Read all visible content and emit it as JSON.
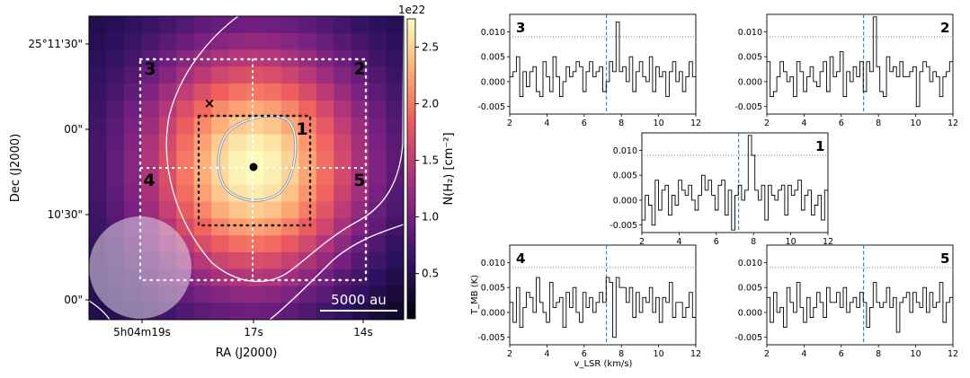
{
  "map": {
    "xlabel": "RA (J2000)",
    "ylabel": "Dec (J2000)",
    "x_ticks": [
      "5h04m19s",
      "17s",
      "14s"
    ],
    "y_ticks": [
      "25°11'30\"",
      "00\"",
      "10'30\"",
      "00\""
    ],
    "colorbar_label": "N(H₂) [cm⁻²]",
    "colorbar_offset": "1e22",
    "colorbar_ticks": [
      "0.5",
      "1.0",
      "1.5",
      "2.0",
      "2.5"
    ],
    "colorbar_range": [
      0.1,
      2.75
    ],
    "colormap": [
      "#000004",
      "#2c115f",
      "#721f81",
      "#b73779",
      "#f1605d",
      "#feb078",
      "#fcfdbf"
    ],
    "scalebar_label": "5000 au",
    "region_labels": [
      "1",
      "2",
      "3",
      "4",
      "5"
    ]
  },
  "chart_data": {
    "type": "line",
    "xlabel": "v_LSR (km/s)",
    "ylabel": "T_MB (K)",
    "xlim": [
      2,
      12
    ],
    "ylim": [
      -0.0065,
      0.0135
    ],
    "x_ticks": [
      "2",
      "4",
      "6",
      "8",
      "10",
      "12"
    ],
    "y_ticks": [
      "-0.005",
      "0.000",
      "0.005",
      "0.010"
    ],
    "threshold_k": 0.009,
    "line_velocity": 7.2,
    "panels": [
      {
        "label": "1",
        "values": [
          -0.004,
          0.001,
          -0.001,
          -0.005,
          0.004,
          -0.002,
          0.002,
          0.003,
          -0.003,
          0.001,
          -0.001,
          0.004,
          0.002,
          0.001,
          0.003,
          0.0,
          -0.002,
          0.001,
          0.005,
          0.002,
          0.004,
          0.001,
          -0.002,
          0.003,
          0.004,
          -0.003,
          0.002,
          -0.006,
          0.001,
          0.003,
          0.0,
          0.002,
          0.013,
          0.009,
          0.002,
          0.0,
          0.003,
          -0.004,
          0.003,
          0.001,
          0.0,
          0.002,
          0.003,
          -0.003,
          0.003,
          0.001,
          0.002,
          0.004,
          -0.002,
          0.001,
          0.002,
          -0.003,
          -0.001,
          0.001,
          -0.004,
          0.002
        ]
      },
      {
        "label": "2",
        "values": [
          0.004,
          -0.003,
          -0.002,
          0.001,
          0.004,
          0.002,
          0.0,
          0.001,
          -0.003,
          0.004,
          0.002,
          -0.002,
          0.001,
          0.003,
          0.0,
          -0.001,
          0.002,
          0.004,
          -0.002,
          0.005,
          0.001,
          0.002,
          0.006,
          -0.003,
          0.002,
          0.0,
          0.003,
          0.001,
          0.004,
          -0.002,
          0.004,
          0.002,
          0.013,
          0.003,
          -0.002,
          -0.003,
          0.005,
          0.002,
          0.003,
          0.001,
          0.004,
          0.001,
          0.001,
          0.002,
          0.003,
          -0.005,
          0.002,
          0.004,
          0.003,
          0.0,
          0.002,
          0.001,
          -0.003,
          0.001,
          0.002,
          0.004
        ]
      },
      {
        "label": "3",
        "values": [
          0.001,
          0.002,
          0.005,
          -0.003,
          0.002,
          -0.001,
          0.002,
          0.003,
          -0.002,
          -0.003,
          0.004,
          0.001,
          -0.002,
          0.005,
          0.001,
          -0.003,
          0.0,
          0.003,
          0.001,
          0.002,
          0.004,
          0.003,
          -0.002,
          0.002,
          0.004,
          0.001,
          0.002,
          0.003,
          -0.002,
          0.0,
          0.004,
          0.002,
          0.012,
          0.002,
          0.003,
          0.0,
          0.005,
          -0.002,
          0.002,
          0.004,
          0.001,
          0.0,
          0.005,
          -0.002,
          0.003,
          0.001,
          0.002,
          -0.003,
          0.002,
          0.004,
          0.0,
          0.002,
          -0.002,
          0.001,
          0.004,
          0.001
        ]
      },
      {
        "label": "4",
        "values": [
          0.002,
          -0.002,
          0.005,
          -0.003,
          0.001,
          0.004,
          0.003,
          0.0,
          0.007,
          0.002,
          0.0,
          -0.002,
          0.006,
          0.001,
          0.002,
          0.003,
          -0.003,
          0.004,
          0.001,
          0.005,
          0.0,
          -0.002,
          0.004,
          0.001,
          0.003,
          0.0,
          0.002,
          0.004,
          0.002,
          0.007,
          0.006,
          -0.005,
          0.007,
          0.005,
          0.005,
          0.002,
          0.005,
          -0.001,
          0.004,
          0.0,
          0.003,
          0.002,
          0.005,
          0.0,
          0.003,
          -0.002,
          0.003,
          0.002,
          0.006,
          -0.001,
          0.002,
          0.002,
          -0.001,
          0.001,
          0.004,
          -0.001
        ]
      },
      {
        "label": "5",
        "values": [
          0.003,
          -0.002,
          0.004,
          0.0,
          0.001,
          -0.003,
          0.005,
          0.002,
          0.0,
          0.006,
          0.001,
          -0.002,
          0.003,
          -0.001,
          0.001,
          0.004,
          0.002,
          -0.001,
          0.005,
          0.002,
          0.002,
          0.004,
          0.001,
          0.005,
          0.0,
          0.002,
          0.003,
          0.001,
          0.004,
          0.002,
          -0.003,
          0.001,
          0.006,
          0.002,
          0.001,
          0.002,
          0.005,
          0.001,
          0.003,
          -0.004,
          0.002,
          0.003,
          0.004,
          0.0,
          0.004,
          0.002,
          0.001,
          0.005,
          0.0,
          0.004,
          0.001,
          0.002,
          0.006,
          -0.002,
          0.002,
          0.003
        ]
      }
    ]
  }
}
